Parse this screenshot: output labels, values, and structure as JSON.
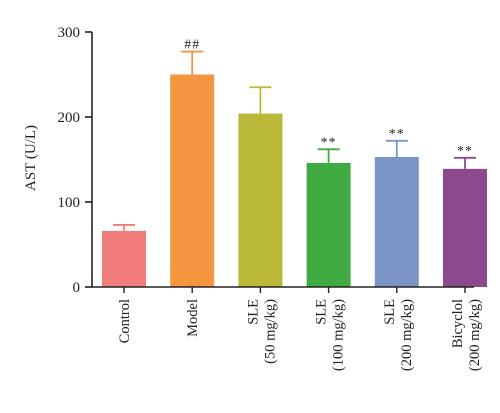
{
  "chart_data": {
    "type": "bar",
    "title": "",
    "xlabel": "",
    "ylabel": "AST (U/L)",
    "ylim": [
      0,
      300
    ],
    "yticks": [
      0,
      100,
      200,
      300
    ],
    "grid": false,
    "legend": "none",
    "categories": [
      [
        "Control"
      ],
      [
        "Model"
      ],
      [
        "SLE",
        "(50 mg/kg)"
      ],
      [
        "SLE",
        "(100 mg/kg)"
      ],
      [
        "SLE",
        "(200 mg/kg)"
      ],
      [
        "Bicyclol",
        "(200 mg/kg)"
      ]
    ],
    "values": [
      66,
      250,
      204,
      146,
      153,
      139
    ],
    "error": [
      7,
      27,
      31,
      16,
      19,
      13
    ],
    "annotations": [
      "",
      "##",
      "",
      "**",
      "**",
      "**"
    ],
    "colors": [
      "#f07c7c",
      "#f4953f",
      "#b9b838",
      "#3eaa3f",
      "#7b96c6",
      "#8b4a8c"
    ]
  }
}
